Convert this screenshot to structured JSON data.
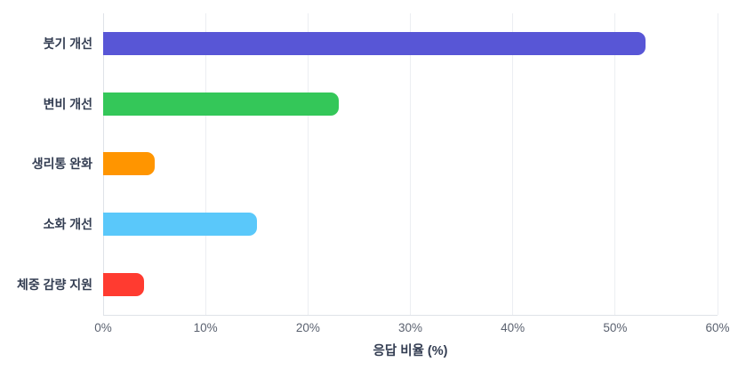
{
  "chart_data": {
    "type": "bar",
    "orientation": "horizontal",
    "categories": [
      "붓기 개선",
      "변비 개선",
      "생리통 완화",
      "소화 개선",
      "체중 감량 지원"
    ],
    "values": [
      53,
      23,
      5,
      15,
      4
    ],
    "bar_colors": [
      "#5856D6",
      "#34C759",
      "#FF9500",
      "#5AC8FA",
      "#FF3B30"
    ],
    "xlabel": "응답 비율 (%)",
    "xlim": [
      0,
      60
    ],
    "x_ticks": [
      {
        "value": 0,
        "label": "0%"
      },
      {
        "value": 10,
        "label": "10%"
      },
      {
        "value": 20,
        "label": "20%"
      },
      {
        "value": 30,
        "label": "30%"
      },
      {
        "value": 40,
        "label": "40%"
      },
      {
        "value": 50,
        "label": "50%"
      },
      {
        "value": 60,
        "label": "60%"
      }
    ],
    "grid": "vertical",
    "legend": "none"
  },
  "colors": {
    "background": "#ffffff",
    "gridline": "#eceef2",
    "axis_line": "#dfe2e8",
    "tick_label": "#5b6270",
    "category_label": "#333d52",
    "axis_title": "#333d52"
  }
}
